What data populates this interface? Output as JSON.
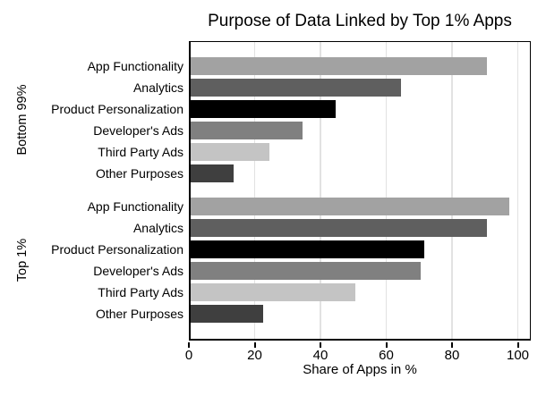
{
  "title": "Purpose of Data Linked by Top 1% Apps",
  "chart_data": {
    "type": "bar",
    "orientation": "horizontal",
    "title": "Purpose of Data Linked by Top 1% Apps",
    "xlabel": "Share of Apps in %",
    "xlim": [
      0,
      104
    ],
    "x_ticks": [
      0,
      20,
      40,
      60,
      80,
      100
    ],
    "grid": "vertical",
    "legend": "none",
    "categories": [
      "App Functionality",
      "Analytics",
      "Product Personalization",
      "Developer's Ads",
      "Third Party Ads",
      "Other Purposes"
    ],
    "series": [
      {
        "name": "Bottom 99%",
        "values": [
          90,
          64,
          44,
          34,
          24,
          13
        ]
      },
      {
        "name": "Top 1%",
        "values": [
          97,
          90,
          71,
          70,
          50,
          22
        ]
      }
    ],
    "bar_colors": [
      "#a2a2a2",
      "#5f5f5f",
      "#000000",
      "#808080",
      "#c4c4c4",
      "#3f3f3f"
    ],
    "gridline_color": "#e2e2e2",
    "axis_color": "#000000",
    "background_color": "#ffffff"
  }
}
